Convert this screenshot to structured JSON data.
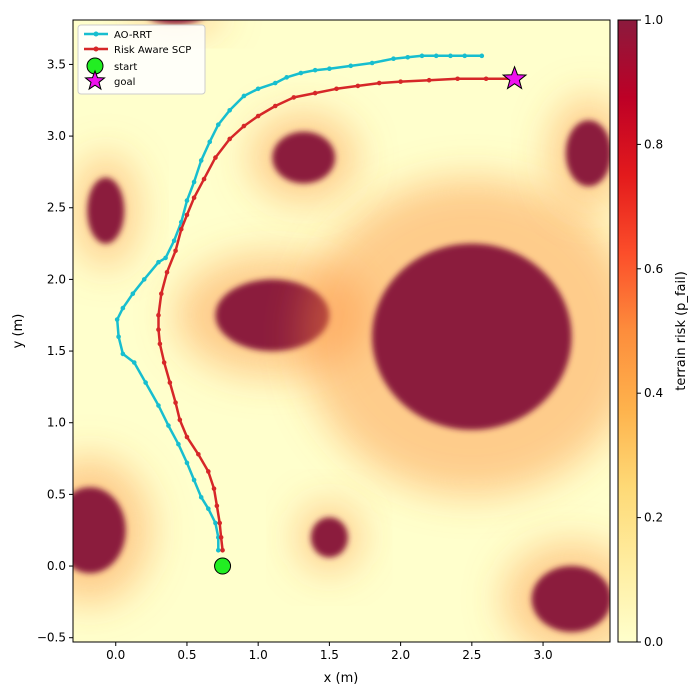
{
  "chart_data": {
    "type": "line",
    "xlabel": "x (m)",
    "ylabel": "y (m)",
    "xlim": [
      -0.3,
      3.47
    ],
    "ylim": [
      -0.53,
      3.81
    ],
    "x_ticks": [
      0.0,
      0.5,
      1.0,
      1.5,
      2.0,
      2.5,
      3.0
    ],
    "x_tick_labels": [
      "0.0",
      "0.5",
      "1.0",
      "1.5",
      "2.0",
      "2.5",
      "3.0"
    ],
    "y_ticks": [
      -0.5,
      0.0,
      0.5,
      1.0,
      1.5,
      2.0,
      2.5,
      3.0,
      3.5
    ],
    "y_tick_labels": [
      "−0.5",
      "0.0",
      "0.5",
      "1.0",
      "1.5",
      "2.0",
      "2.5",
      "3.0",
      "3.5"
    ],
    "grid": false,
    "legend_position": "top-left",
    "colorbar": {
      "label": "terrain risk (p_fail)",
      "range": [
        0.0,
        1.0
      ],
      "ticks": [
        0.0,
        0.2,
        0.4,
        0.6,
        0.8,
        1.0
      ],
      "tick_labels": [
        "0.0",
        "0.2",
        "0.4",
        "0.6",
        "0.8",
        "1.0"
      ],
      "colormap": [
        "#ffffcc",
        "#ffeda0",
        "#fed976",
        "#feb24c",
        "#fd8d3c",
        "#fc4e2a",
        "#e31a1c",
        "#bd0026",
        "#8b1a3d"
      ]
    },
    "series": [
      {
        "name": "AO-RRT",
        "color": "#17becf",
        "points": [
          [
            0.72,
            0.11
          ],
          [
            0.72,
            0.2
          ],
          [
            0.7,
            0.3
          ],
          [
            0.65,
            0.4
          ],
          [
            0.6,
            0.48
          ],
          [
            0.55,
            0.6
          ],
          [
            0.5,
            0.72
          ],
          [
            0.44,
            0.85
          ],
          [
            0.37,
            0.98
          ],
          [
            0.3,
            1.12
          ],
          [
            0.21,
            1.28
          ],
          [
            0.13,
            1.42
          ],
          [
            0.05,
            1.48
          ],
          [
            0.02,
            1.6
          ],
          [
            0.01,
            1.72
          ],
          [
            0.05,
            1.8
          ],
          [
            0.12,
            1.9
          ],
          [
            0.2,
            2.0
          ],
          [
            0.3,
            2.12
          ],
          [
            0.35,
            2.15
          ],
          [
            0.41,
            2.27
          ],
          [
            0.46,
            2.4
          ],
          [
            0.5,
            2.55
          ],
          [
            0.55,
            2.68
          ],
          [
            0.6,
            2.83
          ],
          [
            0.66,
            2.96
          ],
          [
            0.72,
            3.08
          ],
          [
            0.8,
            3.18
          ],
          [
            0.9,
            3.28
          ],
          [
            1.0,
            3.33
          ],
          [
            1.12,
            3.37
          ],
          [
            1.2,
            3.41
          ],
          [
            1.3,
            3.44
          ],
          [
            1.4,
            3.46
          ],
          [
            1.5,
            3.47
          ],
          [
            1.65,
            3.49
          ],
          [
            1.8,
            3.51
          ],
          [
            1.95,
            3.54
          ],
          [
            2.05,
            3.55
          ],
          [
            2.15,
            3.56
          ],
          [
            2.25,
            3.56
          ],
          [
            2.35,
            3.56
          ],
          [
            2.45,
            3.56
          ],
          [
            2.57,
            3.56
          ]
        ]
      },
      {
        "name": "Risk Aware SCP",
        "color": "#d62728",
        "points": [
          [
            0.75,
            0.11
          ],
          [
            0.74,
            0.2
          ],
          [
            0.73,
            0.3
          ],
          [
            0.71,
            0.42
          ],
          [
            0.69,
            0.54
          ],
          [
            0.65,
            0.66
          ],
          [
            0.58,
            0.78
          ],
          [
            0.5,
            0.9
          ],
          [
            0.45,
            1.02
          ],
          [
            0.42,
            1.14
          ],
          [
            0.38,
            1.28
          ],
          [
            0.34,
            1.42
          ],
          [
            0.31,
            1.55
          ],
          [
            0.3,
            1.65
          ],
          [
            0.3,
            1.75
          ],
          [
            0.32,
            1.9
          ],
          [
            0.36,
            2.05
          ],
          [
            0.42,
            2.2
          ],
          [
            0.46,
            2.35
          ],
          [
            0.5,
            2.45
          ],
          [
            0.55,
            2.57
          ],
          [
            0.62,
            2.7
          ],
          [
            0.7,
            2.85
          ],
          [
            0.8,
            2.98
          ],
          [
            0.9,
            3.07
          ],
          [
            1.0,
            3.14
          ],
          [
            1.12,
            3.21
          ],
          [
            1.25,
            3.27
          ],
          [
            1.4,
            3.3
          ],
          [
            1.55,
            3.33
          ],
          [
            1.7,
            3.35
          ],
          [
            1.85,
            3.37
          ],
          [
            2.0,
            3.38
          ],
          [
            2.2,
            3.39
          ],
          [
            2.4,
            3.4
          ],
          [
            2.6,
            3.4
          ],
          [
            2.78,
            3.4
          ]
        ]
      }
    ],
    "markers": [
      {
        "name": "start",
        "x": 0.75,
        "y": 0.0,
        "color": "#22ee22",
        "shape": "circle"
      },
      {
        "name": "goal",
        "x": 2.8,
        "y": 3.4,
        "color": "#ee11ee",
        "shape": "star"
      }
    ],
    "risk_regions": [
      {
        "cx": 1.1,
        "cy": 1.75,
        "rx": 0.4,
        "ry": 0.25,
        "risk": 1.0
      },
      {
        "cx": 2.5,
        "cy": 1.6,
        "rx": 0.7,
        "ry": 0.65,
        "risk": 1.0
      },
      {
        "cx": 1.32,
        "cy": 2.85,
        "rx": 0.22,
        "ry": 0.18,
        "risk": 1.0
      },
      {
        "cx": -0.07,
        "cy": 2.48,
        "rx": 0.13,
        "ry": 0.23,
        "risk": 1.0
      },
      {
        "cx": 3.32,
        "cy": 2.88,
        "rx": 0.16,
        "ry": 0.23,
        "risk": 1.0
      },
      {
        "cx": -0.18,
        "cy": 0.25,
        "rx": 0.25,
        "ry": 0.3,
        "risk": 1.0
      },
      {
        "cx": 1.5,
        "cy": 0.2,
        "rx": 0.13,
        "ry": 0.14,
        "risk": 1.0
      },
      {
        "cx": 3.2,
        "cy": -0.23,
        "rx": 0.28,
        "ry": 0.23,
        "risk": 1.0
      },
      {
        "cx": 0.42,
        "cy": 3.85,
        "rx": 0.2,
        "ry": 0.07,
        "risk": 1.0
      }
    ]
  }
}
